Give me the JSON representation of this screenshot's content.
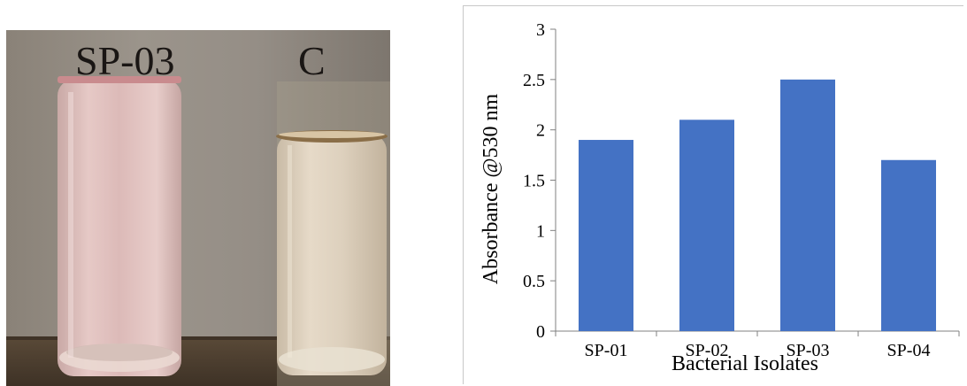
{
  "photo": {
    "labels": {
      "sample": "SP-03",
      "control": "C"
    }
  },
  "chart_data": {
    "type": "bar",
    "categories": [
      "SP-01",
      "SP-02",
      "SP-03",
      "SP-04"
    ],
    "values": [
      1.9,
      2.1,
      2.5,
      1.7
    ],
    "xlabel": "Bacterial Isolates",
    "ylabel": "Absorbance @530 nm",
    "ylim": [
      0,
      3
    ],
    "yticks": [
      "0",
      "0.5",
      "1",
      "1.5",
      "2",
      "2.5",
      "3"
    ],
    "bar_color": "#4472c4",
    "grid": false,
    "legend": "none"
  }
}
